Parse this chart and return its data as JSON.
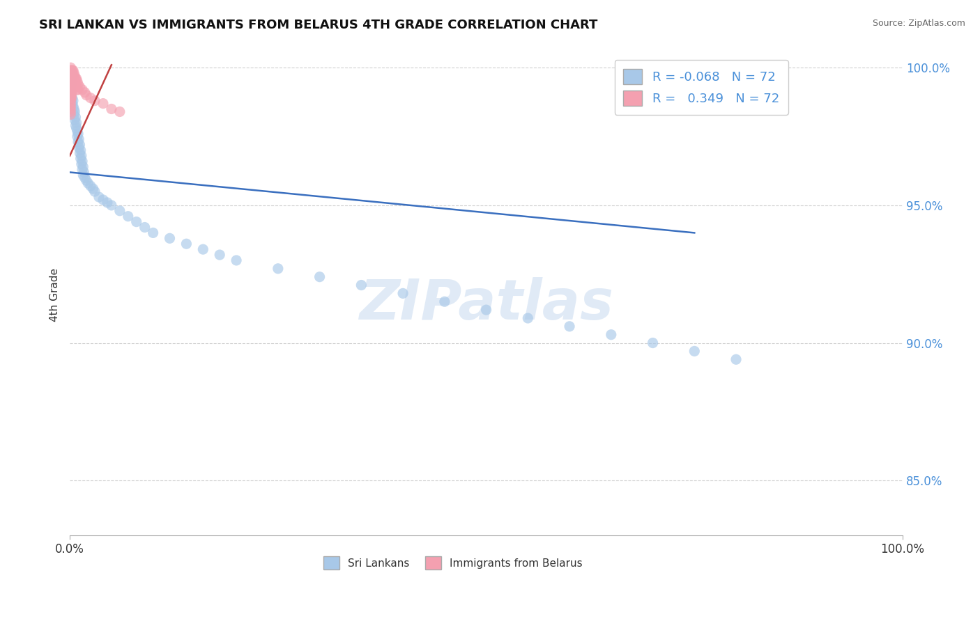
{
  "title": "SRI LANKAN VS IMMIGRANTS FROM BELARUS 4TH GRADE CORRELATION CHART",
  "source_text": "Source: ZipAtlas.com",
  "ylabel": "4th Grade",
  "watermark": "ZIPatlas",
  "blue_color": "#a8c8e8",
  "pink_color": "#f4a0b0",
  "blue_line_color": "#3a6fbf",
  "pink_line_color": "#c04040",
  "blue_scatter": [
    [
      0.001,
      0.998
    ],
    [
      0.001,
      0.996
    ],
    [
      0.002,
      0.998
    ],
    [
      0.003,
      0.997
    ],
    [
      0.002,
      0.996
    ],
    [
      0.003,
      0.995
    ],
    [
      0.002,
      0.994
    ],
    [
      0.001,
      0.993
    ],
    [
      0.001,
      0.992
    ],
    [
      0.002,
      0.991
    ],
    [
      0.001,
      0.99
    ],
    [
      0.003,
      0.989
    ],
    [
      0.004,
      0.988
    ],
    [
      0.003,
      0.987
    ],
    [
      0.004,
      0.986
    ],
    [
      0.005,
      0.985
    ],
    [
      0.006,
      0.984
    ],
    [
      0.005,
      0.983
    ],
    [
      0.007,
      0.982
    ],
    [
      0.006,
      0.981
    ],
    [
      0.008,
      0.98
    ],
    [
      0.007,
      0.979
    ],
    [
      0.008,
      0.978
    ],
    [
      0.009,
      0.977
    ],
    [
      0.01,
      0.976
    ],
    [
      0.009,
      0.975
    ],
    [
      0.011,
      0.974
    ],
    [
      0.01,
      0.973
    ],
    [
      0.012,
      0.972
    ],
    [
      0.011,
      0.971
    ],
    [
      0.013,
      0.97
    ],
    [
      0.012,
      0.969
    ],
    [
      0.014,
      0.968
    ],
    [
      0.013,
      0.967
    ],
    [
      0.015,
      0.966
    ],
    [
      0.014,
      0.965
    ],
    [
      0.016,
      0.964
    ],
    [
      0.015,
      0.963
    ],
    [
      0.017,
      0.962
    ],
    [
      0.016,
      0.961
    ],
    [
      0.018,
      0.96
    ],
    [
      0.02,
      0.959
    ],
    [
      0.022,
      0.958
    ],
    [
      0.025,
      0.957
    ],
    [
      0.028,
      0.956
    ],
    [
      0.03,
      0.955
    ],
    [
      0.035,
      0.953
    ],
    [
      0.04,
      0.952
    ],
    [
      0.045,
      0.951
    ],
    [
      0.05,
      0.95
    ],
    [
      0.06,
      0.948
    ],
    [
      0.07,
      0.946
    ],
    [
      0.08,
      0.944
    ],
    [
      0.09,
      0.942
    ],
    [
      0.1,
      0.94
    ],
    [
      0.12,
      0.938
    ],
    [
      0.14,
      0.936
    ],
    [
      0.16,
      0.934
    ],
    [
      0.18,
      0.932
    ],
    [
      0.2,
      0.93
    ],
    [
      0.25,
      0.927
    ],
    [
      0.3,
      0.924
    ],
    [
      0.35,
      0.921
    ],
    [
      0.4,
      0.918
    ],
    [
      0.45,
      0.915
    ],
    [
      0.5,
      0.912
    ],
    [
      0.55,
      0.909
    ],
    [
      0.6,
      0.906
    ],
    [
      0.65,
      0.903
    ],
    [
      0.7,
      0.9
    ],
    [
      0.75,
      0.897
    ],
    [
      0.8,
      0.894
    ]
  ],
  "pink_scatter": [
    [
      0.001,
      1.0
    ],
    [
      0.001,
      0.999
    ],
    [
      0.001,
      0.998
    ],
    [
      0.001,
      0.997
    ],
    [
      0.001,
      0.996
    ],
    [
      0.001,
      0.995
    ],
    [
      0.001,
      0.994
    ],
    [
      0.001,
      0.993
    ],
    [
      0.001,
      0.992
    ],
    [
      0.001,
      0.991
    ],
    [
      0.001,
      0.99
    ],
    [
      0.001,
      0.989
    ],
    [
      0.002,
      0.999
    ],
    [
      0.002,
      0.998
    ],
    [
      0.002,
      0.997
    ],
    [
      0.002,
      0.996
    ],
    [
      0.002,
      0.995
    ],
    [
      0.002,
      0.994
    ],
    [
      0.002,
      0.993
    ],
    [
      0.002,
      0.992
    ],
    [
      0.003,
      0.999
    ],
    [
      0.003,
      0.998
    ],
    [
      0.003,
      0.997
    ],
    [
      0.003,
      0.996
    ],
    [
      0.003,
      0.995
    ],
    [
      0.004,
      0.999
    ],
    [
      0.004,
      0.997
    ],
    [
      0.004,
      0.995
    ],
    [
      0.005,
      0.998
    ],
    [
      0.005,
      0.996
    ],
    [
      0.006,
      0.997
    ],
    [
      0.006,
      0.995
    ],
    [
      0.007,
      0.996
    ],
    [
      0.007,
      0.994
    ],
    [
      0.008,
      0.996
    ],
    [
      0.008,
      0.993
    ],
    [
      0.009,
      0.995
    ],
    [
      0.009,
      0.992
    ],
    [
      0.01,
      0.994
    ],
    [
      0.01,
      0.992
    ],
    [
      0.012,
      0.993
    ],
    [
      0.015,
      0.992
    ],
    [
      0.018,
      0.991
    ],
    [
      0.02,
      0.99
    ],
    [
      0.025,
      0.989
    ],
    [
      0.03,
      0.988
    ],
    [
      0.04,
      0.987
    ],
    [
      0.05,
      0.985
    ],
    [
      0.06,
      0.984
    ],
    [
      0.001,
      0.988
    ],
    [
      0.001,
      0.987
    ],
    [
      0.001,
      0.986
    ],
    [
      0.002,
      0.991
    ],
    [
      0.002,
      0.99
    ],
    [
      0.001,
      0.985
    ],
    [
      0.003,
      0.994
    ],
    [
      0.001,
      0.984
    ],
    [
      0.001,
      0.983
    ],
    [
      0.002,
      0.989
    ],
    [
      0.003,
      0.993
    ]
  ],
  "xlim": [
    0.0,
    1.0
  ],
  "ylim": [
    0.83,
    1.005
  ],
  "blue_line_x": [
    0.0,
    0.75
  ],
  "blue_line_y": [
    0.962,
    0.94
  ],
  "pink_line_x": [
    0.0,
    0.05
  ],
  "pink_line_y": [
    0.968,
    1.001
  ],
  "ytick_vals": [
    0.85,
    0.9,
    0.95,
    1.0
  ],
  "ytick_labels": [
    "85.0%",
    "90.0%",
    "95.0%",
    "100.0%"
  ],
  "xtick_vals": [
    0.0,
    1.0
  ],
  "xtick_labels": [
    "0.0%",
    "100.0%"
  ]
}
